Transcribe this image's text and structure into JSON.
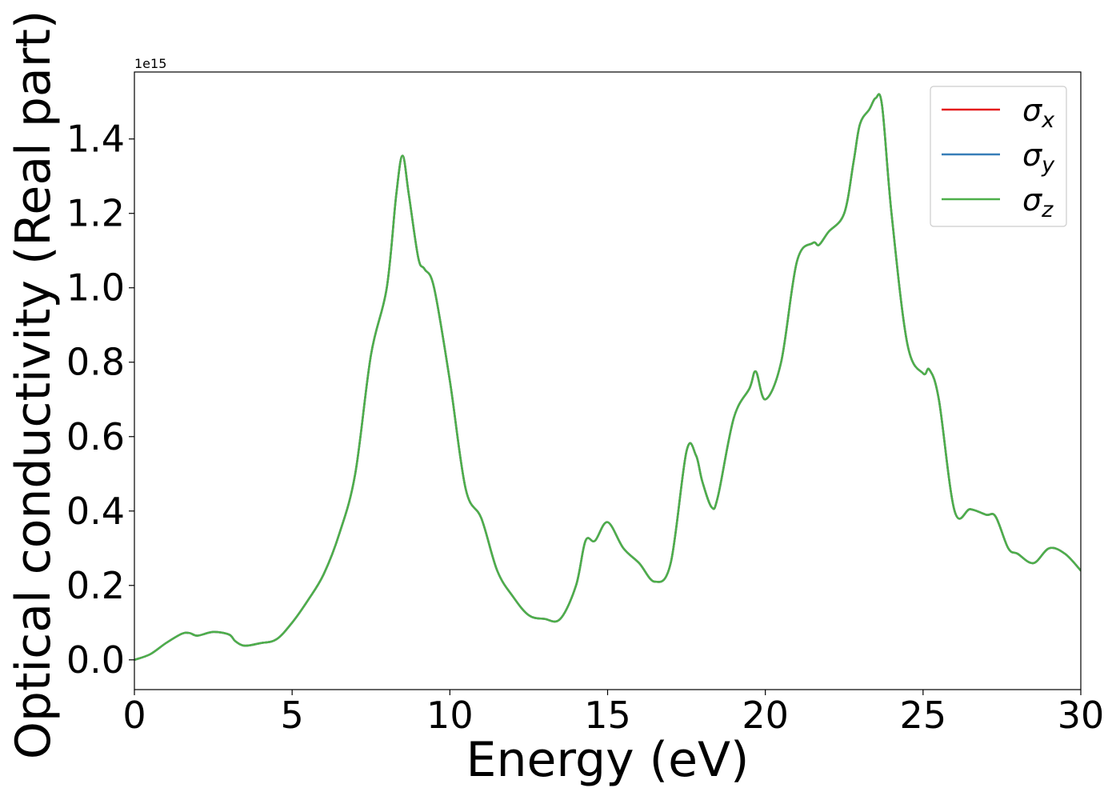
{
  "chart_data": {
    "type": "line",
    "xlabel": "Energy (eV)",
    "ylabel": "Optical conductivity (Real part)",
    "offset_label": "1e15",
    "xlim": [
      0,
      30
    ],
    "ylim": [
      -0.08,
      1.58
    ],
    "x_ticks": [
      0,
      5,
      10,
      15,
      20,
      25,
      30
    ],
    "y_ticks": [
      0.0,
      0.2,
      0.4,
      0.6,
      0.8,
      1.0,
      1.2,
      1.4
    ],
    "x_tick_labels": [
      "0",
      "5",
      "10",
      "15",
      "20",
      "25",
      "30"
    ],
    "y_tick_labels": [
      "0.0",
      "0.2",
      "0.4",
      "0.6",
      "0.8",
      "1.0",
      "1.2",
      "1.4"
    ],
    "grid": false,
    "legend_position": "top-right",
    "series": [
      {
        "name": "σx",
        "legend_base": "σ",
        "legend_sub": "x",
        "color": "#e41a1c"
      },
      {
        "name": "σy",
        "legend_base": "σ",
        "legend_sub": "y",
        "color": "#377eb8"
      },
      {
        "name": "σz",
        "legend_base": "σ",
        "legend_sub": "z",
        "color": "#4daf4a"
      }
    ],
    "x": [
      0,
      0.5,
      1,
      1.5,
      1.75,
      2,
      2.5,
      3,
      3.2,
      3.5,
      4,
      4.5,
      5,
      5.5,
      6,
      6.5,
      7,
      7.5,
      8,
      8.3,
      8.5,
      8.7,
      9,
      9.2,
      9.5,
      10,
      10.5,
      11,
      11.5,
      12,
      12.5,
      13,
      13.5,
      14,
      14.3,
      14.6,
      15,
      15.5,
      16,
      16.5,
      17,
      17.5,
      17.8,
      18,
      18.3,
      18.5,
      19,
      19.5,
      19.7,
      20,
      20.5,
      21,
      21.5,
      21.7,
      22,
      22.5,
      22.8,
      23,
      23.3,
      23.5,
      23.7,
      24,
      24.5,
      25,
      25.2,
      25.5,
      26,
      26.5,
      27,
      27.3,
      27.7,
      28,
      28.5,
      29,
      29.5,
      30
    ],
    "values": [
      0,
      0.015,
      0.045,
      0.07,
      0.072,
      0.065,
      0.075,
      0.068,
      0.05,
      0.038,
      0.045,
      0.055,
      0.1,
      0.16,
      0.23,
      0.34,
      0.5,
      0.82,
      1.0,
      1.25,
      1.355,
      1.25,
      1.08,
      1.05,
      1.0,
      0.75,
      0.46,
      0.38,
      0.24,
      0.17,
      0.12,
      0.11,
      0.11,
      0.2,
      0.32,
      0.32,
      0.37,
      0.3,
      0.26,
      0.21,
      0.26,
      0.56,
      0.55,
      0.48,
      0.41,
      0.44,
      0.65,
      0.73,
      0.775,
      0.7,
      0.8,
      1.07,
      1.12,
      1.115,
      1.15,
      1.2,
      1.34,
      1.44,
      1.48,
      1.51,
      1.49,
      1.2,
      0.85,
      0.77,
      0.78,
      0.7,
      0.4,
      0.405,
      0.39,
      0.385,
      0.3,
      0.285,
      0.26,
      0.3,
      0.285,
      0.24
    ]
  }
}
